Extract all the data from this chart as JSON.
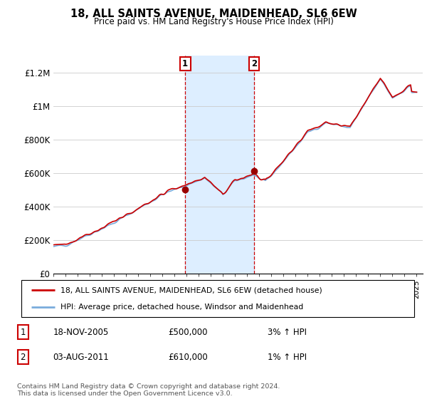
{
  "title": "18, ALL SAINTS AVENUE, MAIDENHEAD, SL6 6EW",
  "subtitle": "Price paid vs. HM Land Registry's House Price Index (HPI)",
  "legend_line1": "18, ALL SAINTS AVENUE, MAIDENHEAD, SL6 6EW (detached house)",
  "legend_line2": "HPI: Average price, detached house, Windsor and Maidenhead",
  "footnote": "Contains HM Land Registry data © Crown copyright and database right 2024.\nThis data is licensed under the Open Government Licence v3.0.",
  "transaction1_date": "18-NOV-2005",
  "transaction1_price": "£500,000",
  "transaction1_hpi": "3% ↑ HPI",
  "transaction2_date": "03-AUG-2011",
  "transaction2_price": "£610,000",
  "transaction2_hpi": "1% ↑ HPI",
  "ylim_min": 0,
  "ylim_max": 1300000,
  "hpi_color": "#7aacdc",
  "price_color": "#cc0000",
  "shade_color": "#ddeeff",
  "marker_color": "#990000",
  "transaction1_x": 2005.88,
  "transaction1_y": 500000,
  "transaction2_x": 2011.58,
  "transaction2_y": 610000,
  "yticks": [
    0,
    200000,
    400000,
    600000,
    800000,
    1000000,
    1200000
  ],
  "ytick_labels": [
    "£0",
    "£200K",
    "£400K",
    "£600K",
    "£800K",
    "£1M",
    "£1.2M"
  ],
  "xmin": 1995,
  "xmax": 2025.5,
  "box_color": "#cc0000"
}
